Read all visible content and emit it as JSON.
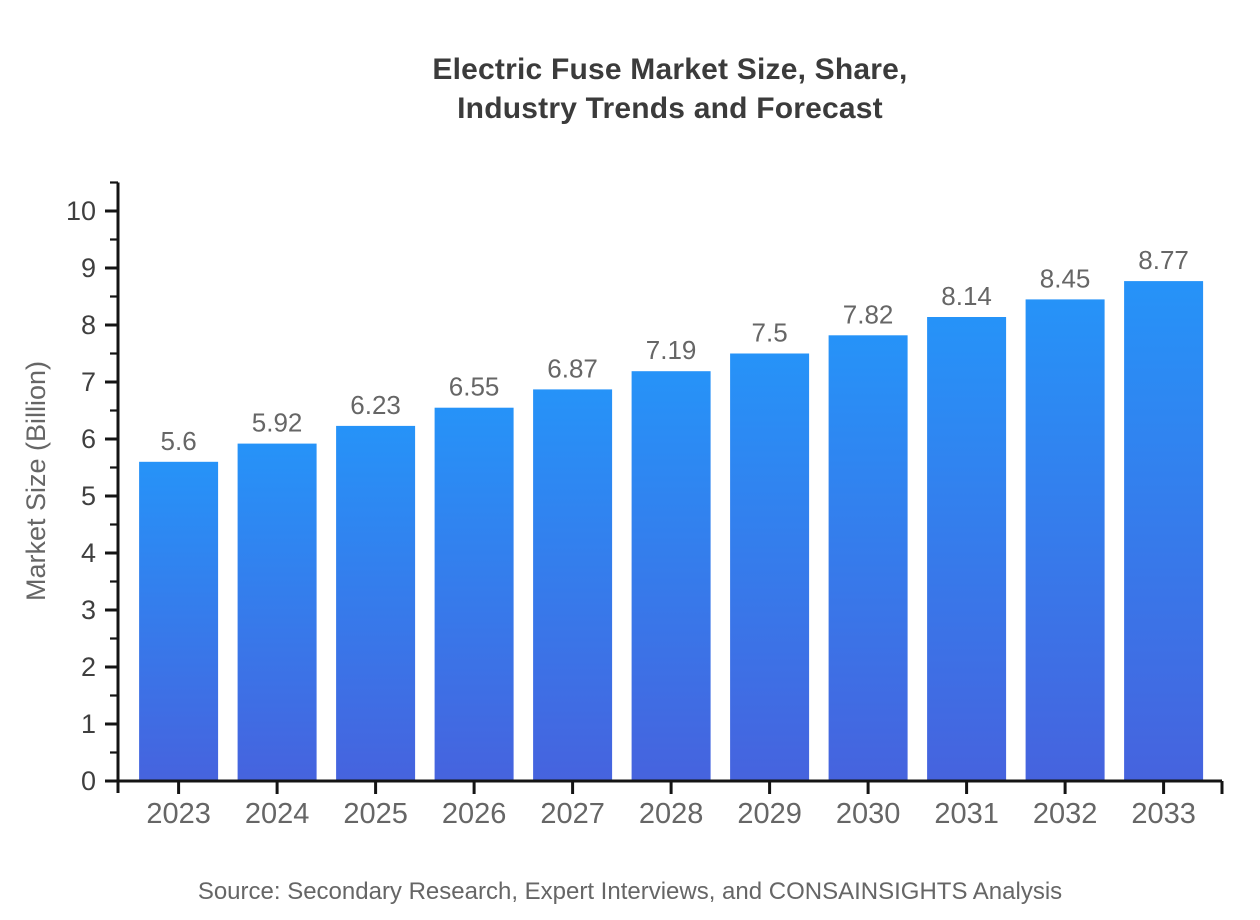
{
  "title": {
    "line1": "Electric Fuse Market Size, Share,",
    "line2": "Industry Trends and Forecast"
  },
  "source": "Source: Secondary Research, Expert Interviews, and CONSAINSIGHTS Analysis",
  "colors": {
    "bar_gradient_top": "#2693f8",
    "bar_gradient_bottom": "#4663de",
    "axis": "#141414",
    "title_text": "#3b3b3b",
    "muted_text": "#666666",
    "ytick_text": "#3f3f3f",
    "background": "#ffffff"
  },
  "chart_data": {
    "type": "bar",
    "title": "Electric Fuse Market Size, Share, Industry Trends and Forecast",
    "categories": [
      "2023",
      "2024",
      "2025",
      "2026",
      "2027",
      "2028",
      "2029",
      "2030",
      "2031",
      "2032",
      "2033"
    ],
    "values": [
      5.6,
      5.92,
      6.23,
      6.55,
      6.87,
      7.19,
      7.5,
      7.82,
      8.14,
      8.45,
      8.77
    ],
    "bar_labels": [
      "5.6",
      "5.92",
      "6.23",
      "6.55",
      "6.87",
      "7.19",
      "7.5",
      "7.82",
      "8.14",
      "8.45",
      "8.77"
    ],
    "xlabel": "",
    "ylabel": "Market Size (Billion)",
    "ylim": [
      0,
      10.5
    ],
    "yticks": [
      0,
      1,
      2,
      3,
      4,
      5,
      6,
      7,
      8,
      9,
      10
    ],
    "minor_ticks_every": 0.5,
    "grid": false,
    "legend": "none"
  }
}
